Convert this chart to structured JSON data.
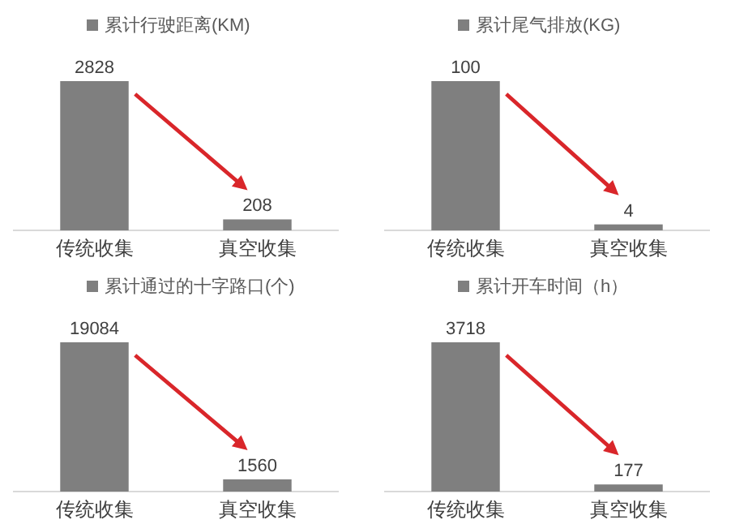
{
  "chart_data": [
    {
      "type": "bar",
      "categories": [
        "传统收集",
        "真空收集"
      ],
      "data_labels": true,
      "legend": "top",
      "series": [
        {
          "name": "累计行驶距离(KM)",
          "color": "#7f7f7f",
          "values": [
            2828,
            208
          ]
        }
      ]
    },
    {
      "type": "bar",
      "categories": [
        "传统收集",
        "真空收集"
      ],
      "data_labels": true,
      "legend": "top",
      "series": [
        {
          "name": "累计尾气排放(KG)",
          "color": "#7f7f7f",
          "values": [
            100,
            4
          ]
        }
      ]
    },
    {
      "type": "bar",
      "categories": [
        "传统收集",
        "真空收集"
      ],
      "data_labels": true,
      "legend": "top",
      "series": [
        {
          "name": "累计通过的十字路口(个)",
          "color": "#7f7f7f",
          "values": [
            19084,
            1560
          ]
        }
      ]
    },
    {
      "type": "bar",
      "categories": [
        "传统收集",
        "真空收集"
      ],
      "data_labels": true,
      "legend": "top",
      "series": [
        {
          "name": "累计开车时间（h）",
          "color": "#7f7f7f",
          "values": [
            3718,
            177
          ]
        }
      ]
    }
  ]
}
